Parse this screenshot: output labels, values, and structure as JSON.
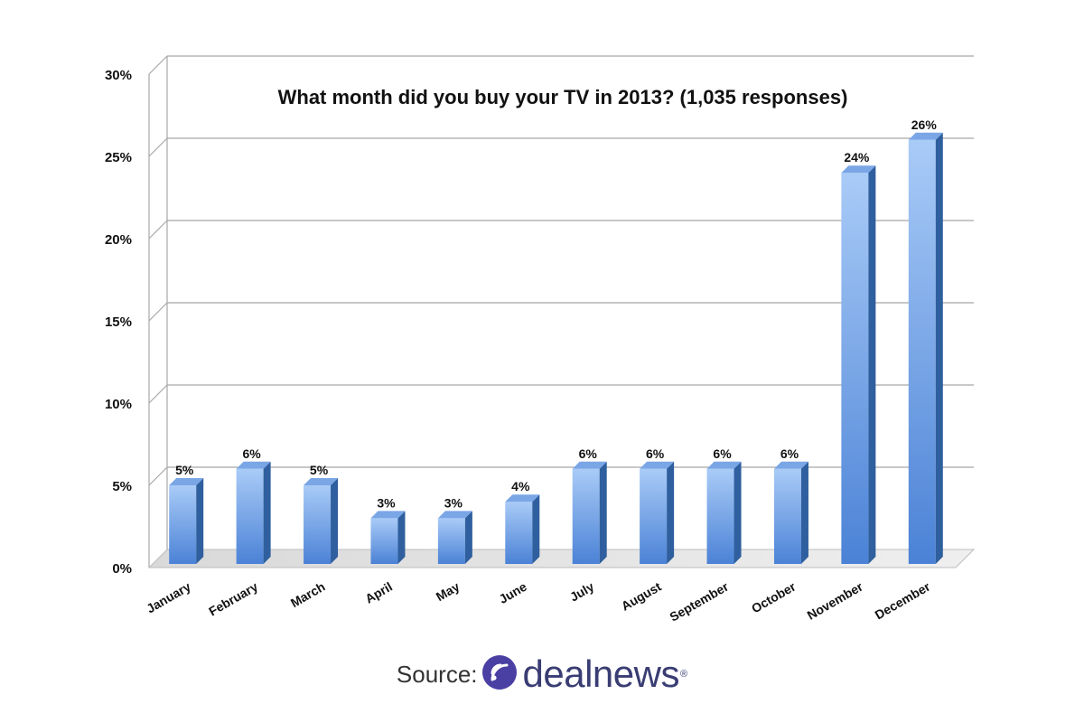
{
  "chart_data": {
    "type": "bar",
    "title": "What month did you buy your TV in 2013? (1,035 responses)",
    "xlabel": "",
    "ylabel": "",
    "categories": [
      "January",
      "February",
      "March",
      "April",
      "May",
      "June",
      "July",
      "August",
      "September",
      "October",
      "November",
      "December"
    ],
    "values": [
      5,
      6,
      5,
      3,
      3,
      4,
      6,
      6,
      6,
      6,
      24,
      26
    ],
    "value_labels": [
      "5%",
      "6%",
      "5%",
      "3%",
      "3%",
      "4%",
      "6%",
      "6%",
      "6%",
      "6%",
      "24%",
      "26%"
    ],
    "ylim": [
      0,
      30
    ],
    "yticks": [
      0,
      5,
      10,
      15,
      20,
      25,
      30
    ],
    "ytick_labels": [
      "0%",
      "5%",
      "10%",
      "15%",
      "20%",
      "25%",
      "30%"
    ],
    "grid": true,
    "legend": "none",
    "style": "3d"
  },
  "colors": {
    "bar_front_top": "#a9cbf7",
    "bar_front_bottom": "#4b82d6",
    "bar_side": "#2f5f9e",
    "bar_top": "#7aa6e6",
    "grid": "#a8a8a8",
    "text": "#111111",
    "brand": "#3a3d73",
    "brand_icon": "#4a3fa3"
  },
  "footer": {
    "source_label": "Source:",
    "brand_name": "dealnews",
    "brand_mark": "®",
    "logo_icon": "dealnews-signal-icon"
  }
}
